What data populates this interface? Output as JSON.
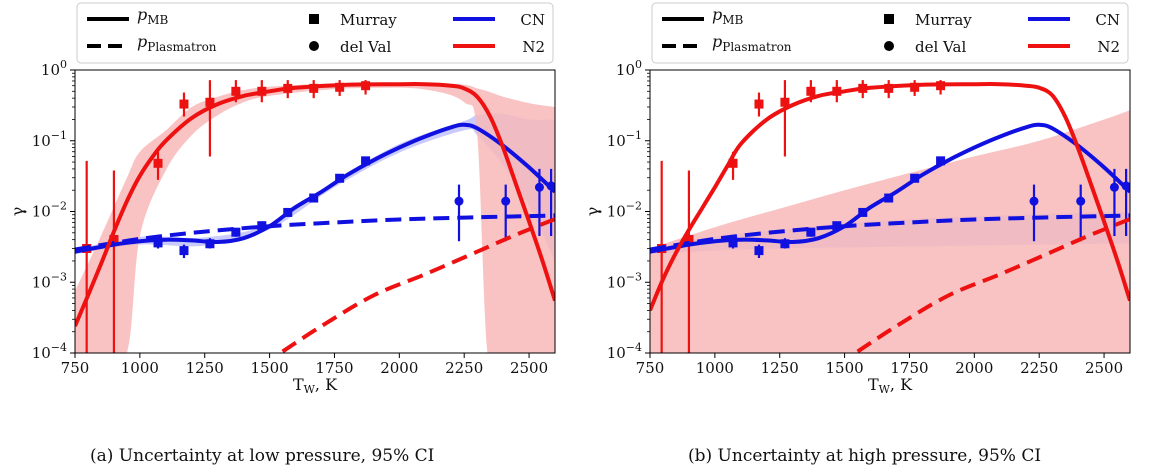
{
  "colors": {
    "cn": "#1010e0",
    "n2": "#ee1111",
    "cn_band": "#b7b9fb",
    "n2_band": "#f8b9b9",
    "overlap": "#c6a0c8"
  },
  "legend": {
    "solid_label_main": "p",
    "solid_label_sub": "MB",
    "dashed_label_main": "p",
    "dashed_label_sub": "Plasmatron",
    "square_label": "Murray",
    "circle_label": "del Val",
    "cn_label": "CN",
    "n2_label": "N2"
  },
  "axes": {
    "ylabel": "γ",
    "xlabel_main": "T",
    "xlabel_sub": "W",
    "xlabel_unit": ", K",
    "y_ticks": [
      {
        "base": "10",
        "exp": "0"
      },
      {
        "base": "10",
        "exp": "−1"
      },
      {
        "base": "10",
        "exp": "−2"
      },
      {
        "base": "10",
        "exp": "−3"
      },
      {
        "base": "10",
        "exp": "−4"
      }
    ],
    "x_ticks": [
      "750",
      "1000",
      "1250",
      "1500",
      "1750",
      "2000",
      "2250",
      "2500"
    ]
  },
  "captions": {
    "a": "(a) Uncertainty at low pressure, 95% CI",
    "b": "(b) Uncertainty at high pressure, 95% CI"
  },
  "chart_data": [
    {
      "type": "line",
      "title": "",
      "xlabel": "T_W, K",
      "ylabel": "γ",
      "xlim": [
        750,
        2600
      ],
      "ylim": [
        0.0001,
        1
      ],
      "yscale": "log",
      "legend_position": "top",
      "series": [
        {
          "name": "CN p_MB",
          "style": "solid",
          "x": [
            750,
            900,
            1000,
            1100,
            1200,
            1300,
            1400,
            1500,
            1600,
            1700,
            1800,
            1900,
            2000,
            2100,
            2200,
            2250,
            2300,
            2400,
            2500,
            2600
          ],
          "y": [
            0.0027,
            0.0034,
            0.0038,
            0.004,
            0.0039,
            0.0037,
            0.0042,
            0.0062,
            0.0115,
            0.019,
            0.033,
            0.053,
            0.08,
            0.115,
            0.155,
            0.168,
            0.15,
            0.085,
            0.042,
            0.019
          ]
        },
        {
          "name": "CN p_Plasmatron",
          "style": "dashed",
          "x": [
            750,
            1000,
            1250,
            1500,
            1750,
            2000,
            2250,
            2500,
            2600
          ],
          "y": [
            0.0029,
            0.0041,
            0.0052,
            0.0062,
            0.007,
            0.0077,
            0.0082,
            0.0086,
            0.0088
          ]
        },
        {
          "name": "N2 p_MB",
          "style": "solid",
          "x": [
            750,
            800,
            850,
            900,
            950,
            1000,
            1050,
            1100,
            1200,
            1300,
            1400,
            1500,
            1600,
            1800,
            2000,
            2100,
            2200,
            2250,
            2300,
            2350,
            2400,
            2450,
            2500,
            2550,
            2600
          ],
          "y": [
            0.00024,
            0.00065,
            0.0018,
            0.0052,
            0.014,
            0.032,
            0.06,
            0.1,
            0.21,
            0.33,
            0.43,
            0.5,
            0.56,
            0.62,
            0.63,
            0.63,
            0.6,
            0.55,
            0.42,
            0.22,
            0.08,
            0.024,
            0.0072,
            0.0021,
            0.00055
          ]
        },
        {
          "name": "N2 p_Plasmatron",
          "style": "dashed",
          "x": [
            1550,
            1700,
            1900,
            2100,
            2300,
            2450,
            2600
          ],
          "y": [
            0.000105,
            0.00024,
            0.00065,
            0.0013,
            0.0027,
            0.0047,
            0.0078
          ]
        }
      ],
      "markers": [
        {
          "name": "Murray",
          "series": "CN",
          "shape": "square",
          "x": [
            795,
            900,
            1070,
            1170,
            1270,
            1370,
            1470,
            1570,
            1670,
            1770,
            1870
          ],
          "y": [
            0.003,
            0.004,
            0.0036,
            0.0028,
            0.0035,
            0.0051,
            0.0063,
            0.0097,
            0.0155,
            0.0295,
            0.052
          ],
          "err_lo": [
            0.0026,
            0.0035,
            0.003,
            0.0022,
            0.003,
            0.0044,
            0.0057,
            0.0088,
            0.0142,
            0.0272,
            0.048
          ],
          "err_hi": [
            0.0035,
            0.0046,
            0.0044,
            0.0034,
            0.0042,
            0.0058,
            0.007,
            0.0107,
            0.0168,
            0.032,
            0.056
          ]
        },
        {
          "name": "del Val",
          "series": "CN",
          "shape": "circle",
          "x": [
            2230,
            2410,
            2540,
            2585
          ],
          "y": [
            0.014,
            0.014,
            0.022,
            0.023
          ],
          "err_lo": [
            0.0038,
            0.0038,
            0.0045,
            0.0045
          ],
          "err_hi": [
            0.024,
            0.024,
            0.04,
            0.04
          ]
        },
        {
          "name": "Murray",
          "series": "N2",
          "shape": "square",
          "x": [
            795,
            900,
            1070,
            1170,
            1270,
            1370,
            1470,
            1570,
            1670,
            1770,
            1870
          ],
          "y": [
            0.003,
            0.004,
            0.048,
            0.33,
            0.35,
            0.5,
            0.5,
            0.55,
            0.55,
            0.57,
            0.6
          ],
          "err_lo": [
            0.0001,
            0.0001,
            0.028,
            0.22,
            0.06,
            0.35,
            0.35,
            0.4,
            0.4,
            0.43,
            0.45
          ],
          "err_hi": [
            0.052,
            0.038,
            0.07,
            0.48,
            0.72,
            0.72,
            0.72,
            0.72,
            0.72,
            0.72,
            0.72
          ]
        }
      ],
      "bands": [
        {
          "name": "CN",
          "x": [
            750,
            1000,
            1250,
            1500,
            1750,
            2000,
            2250,
            2300,
            2400,
            2500,
            2600
          ],
          "lo": [
            0.0025,
            0.0034,
            0.0033,
            0.0056,
            0.022,
            0.068,
            0.14,
            0.12,
            0.045,
            0.012,
            0.002
          ],
          "hi": [
            0.0029,
            0.0044,
            0.0043,
            0.0067,
            0.027,
            0.09,
            0.19,
            0.23,
            0.24,
            0.2,
            0.2
          ]
        },
        {
          "name": "N2",
          "x": [
            750,
            850,
            950,
            1000,
            1100,
            1200,
            1300,
            1400,
            1500,
            1700,
            1900,
            2100,
            2250,
            2300,
            2340,
            2400,
            2500,
            2600
          ],
          "lo": [
            0.0001,
            0.0001,
            0.0001,
            0.0045,
            0.038,
            0.12,
            0.23,
            0.35,
            0.43,
            0.52,
            0.56,
            0.53,
            0.35,
            0.12,
            0.0001,
            0.0001,
            0.0001,
            0.0001
          ],
          "hi": [
            0.00075,
            0.0045,
            0.03,
            0.07,
            0.14,
            0.3,
            0.42,
            0.52,
            0.58,
            0.64,
            0.66,
            0.66,
            0.62,
            0.55,
            0.5,
            0.42,
            0.34,
            0.3
          ]
        }
      ]
    },
    {
      "type": "line",
      "title": "",
      "xlabel": "T_W, K",
      "ylabel": "γ",
      "xlim": [
        750,
        2600
      ],
      "ylim": [
        0.0001,
        1
      ],
      "yscale": "log",
      "legend_position": "top",
      "series": [
        {
          "name": "CN p_MB",
          "style": "solid",
          "x": [
            750,
            900,
            1000,
            1100,
            1200,
            1300,
            1400,
            1500,
            1600,
            1700,
            1800,
            1900,
            2000,
            2100,
            2200,
            2250,
            2300,
            2400,
            2500,
            2600
          ],
          "y": [
            0.0027,
            0.0034,
            0.0038,
            0.004,
            0.0039,
            0.0037,
            0.0042,
            0.0062,
            0.0115,
            0.019,
            0.033,
            0.053,
            0.08,
            0.115,
            0.155,
            0.168,
            0.15,
            0.085,
            0.042,
            0.019
          ]
        },
        {
          "name": "CN p_Plasmatron",
          "style": "dashed",
          "x": [
            750,
            1000,
            1250,
            1500,
            1750,
            2000,
            2250,
            2500,
            2600
          ],
          "y": [
            0.0029,
            0.0041,
            0.0052,
            0.0062,
            0.007,
            0.0077,
            0.0082,
            0.0086,
            0.0088
          ]
        },
        {
          "name": "N2 p_MB",
          "style": "solid",
          "x": [
            750,
            800,
            850,
            900,
            950,
            1000,
            1050,
            1100,
            1200,
            1300,
            1400,
            1500,
            1600,
            1800,
            2000,
            2100,
            2200,
            2250,
            2300,
            2350,
            2400,
            2450,
            2500,
            2550,
            2600
          ],
          "y": [
            0.0004,
            0.0011,
            0.0026,
            0.0055,
            0.011,
            0.022,
            0.045,
            0.09,
            0.2,
            0.32,
            0.43,
            0.5,
            0.56,
            0.62,
            0.63,
            0.63,
            0.6,
            0.56,
            0.44,
            0.22,
            0.078,
            0.024,
            0.0072,
            0.0021,
            0.00055
          ]
        },
        {
          "name": "N2 p_Plasmatron",
          "style": "dashed",
          "x": [
            1550,
            1700,
            1900,
            2100,
            2300,
            2450,
            2600
          ],
          "y": [
            0.000105,
            0.00024,
            0.00065,
            0.0013,
            0.0027,
            0.0047,
            0.0078
          ]
        }
      ],
      "markers": [
        {
          "name": "Murray",
          "series": "CN",
          "shape": "square",
          "x": [
            795,
            900,
            1070,
            1170,
            1270,
            1370,
            1470,
            1570,
            1670,
            1770,
            1870
          ],
          "y": [
            0.003,
            0.004,
            0.0036,
            0.0028,
            0.0035,
            0.0051,
            0.0063,
            0.0097,
            0.0155,
            0.0295,
            0.052
          ],
          "err_lo": [
            0.0026,
            0.0035,
            0.003,
            0.0022,
            0.003,
            0.0044,
            0.0057,
            0.0088,
            0.0142,
            0.0272,
            0.048
          ],
          "err_hi": [
            0.0035,
            0.0046,
            0.0044,
            0.0034,
            0.0042,
            0.0058,
            0.007,
            0.0107,
            0.0168,
            0.032,
            0.056
          ]
        },
        {
          "name": "del Val",
          "series": "CN",
          "shape": "circle",
          "x": [
            2230,
            2410,
            2540,
            2585
          ],
          "y": [
            0.014,
            0.014,
            0.022,
            0.023
          ],
          "err_lo": [
            0.0038,
            0.0038,
            0.0045,
            0.0045
          ],
          "err_hi": [
            0.024,
            0.024,
            0.04,
            0.04
          ]
        },
        {
          "name": "Murray",
          "series": "N2",
          "shape": "square",
          "x": [
            795,
            900,
            1070,
            1170,
            1270,
            1370,
            1470,
            1570,
            1670,
            1770,
            1870
          ],
          "y": [
            0.003,
            0.004,
            0.048,
            0.33,
            0.35,
            0.5,
            0.5,
            0.55,
            0.55,
            0.57,
            0.6
          ],
          "err_lo": [
            0.0001,
            0.0001,
            0.028,
            0.22,
            0.06,
            0.35,
            0.35,
            0.4,
            0.4,
            0.43,
            0.45
          ],
          "err_hi": [
            0.052,
            0.038,
            0.07,
            0.48,
            0.72,
            0.72,
            0.72,
            0.72,
            0.72,
            0.72,
            0.72
          ]
        }
      ],
      "bands": [
        {
          "name": "CN",
          "x": [
            750,
            1000,
            1250,
            1500,
            1750,
            2000,
            2250,
            2500,
            2600
          ],
          "lo": [
            0.0025,
            0.0028,
            0.003,
            0.0031,
            0.0032,
            0.0033,
            0.0034,
            0.0035,
            0.0035
          ],
          "hi": [
            0.0029,
            0.0044,
            0.0055,
            0.0068,
            0.0078,
            0.0085,
            0.0092,
            0.0098,
            0.01
          ]
        },
        {
          "name": "N2",
          "x": [
            750,
            1000,
            1250,
            1500,
            1750,
            2000,
            2250,
            2500,
            2600
          ],
          "lo": [
            0.0001,
            0.0001,
            0.0001,
            0.0001,
            0.0001,
            0.0001,
            0.0001,
            0.0001,
            0.0001
          ],
          "hi": [
            0.003,
            0.006,
            0.011,
            0.02,
            0.035,
            0.06,
            0.1,
            0.2,
            0.27
          ]
        }
      ]
    }
  ]
}
